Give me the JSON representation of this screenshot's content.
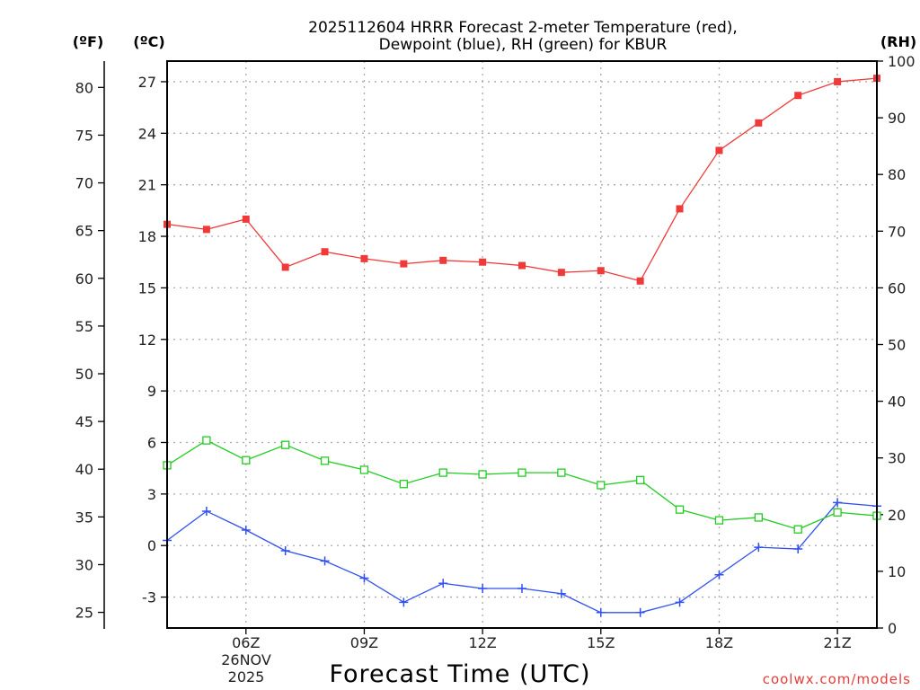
{
  "chart_data": {
    "type": "line",
    "title_lines": [
      "2025112604 HRRR Forecast 2-meter Temperature (red),",
      "Dewpoint (blue), RH (green) for KBUR"
    ],
    "xlabel": "Forecast Time (UTC)",
    "date_label": [
      "26NOV",
      "2025"
    ],
    "units": {
      "fahrenheit": "(ºF)",
      "celsius": "(ºC)",
      "rh": "(RH)"
    },
    "credit": "coolwx.com/models",
    "x_hours_utc": [
      4,
      5,
      6,
      7,
      8,
      9,
      10,
      11,
      12,
      13,
      14,
      15,
      16,
      17,
      18,
      19,
      20,
      21,
      22
    ],
    "x_ticks": [
      {
        "hour": 6,
        "label": "06Z"
      },
      {
        "hour": 9,
        "label": "09Z"
      },
      {
        "hour": 12,
        "label": "12Z"
      },
      {
        "hour": 15,
        "label": "15Z"
      },
      {
        "hour": 18,
        "label": "18Z"
      },
      {
        "hour": 21,
        "label": "21Z"
      }
    ],
    "xlim": [
      4,
      22
    ],
    "ylim_celsius": [
      -4.8,
      28.2
    ],
    "ylim_rh": [
      0,
      100
    ],
    "celsius_ticks": [
      "-3",
      "0",
      "3",
      "6",
      "9",
      "12",
      "15",
      "18",
      "21",
      "24",
      "27"
    ],
    "fahrenheit_ticks": [
      "25",
      "30",
      "35",
      "40",
      "45",
      "50",
      "55",
      "60",
      "65",
      "70",
      "75",
      "80"
    ],
    "rh_ticks": [
      "0",
      "10",
      "20",
      "30",
      "40",
      "50",
      "60",
      "70",
      "80",
      "90",
      "100"
    ],
    "grid": true,
    "series": [
      {
        "name": "Temperature",
        "axis": "celsius",
        "color": "#f03a3a",
        "marker": "filled-square",
        "values": [
          18.7,
          18.4,
          19.0,
          16.2,
          17.1,
          16.7,
          16.4,
          16.6,
          16.5,
          16.3,
          15.9,
          16.0,
          15.4,
          19.6,
          23.0,
          24.6,
          26.2,
          27.0,
          27.2
        ]
      },
      {
        "name": "Dewpoint",
        "axis": "celsius",
        "color": "#3050f0",
        "marker": "plus",
        "values": [
          0.3,
          2.0,
          0.9,
          -0.3,
          -0.9,
          -1.9,
          -3.3,
          -2.2,
          -2.5,
          -2.5,
          -2.8,
          -3.9,
          -3.9,
          -3.3,
          -1.7,
          -0.1,
          -0.2,
          2.5,
          2.3
        ]
      },
      {
        "name": "RH",
        "axis": "rh",
        "color": "#22cc22",
        "marker": "open-square",
        "values": [
          28.7,
          33.1,
          29.6,
          32.3,
          29.5,
          27.9,
          25.4,
          27.4,
          27.1,
          27.4,
          27.4,
          25.2,
          26.1,
          20.9,
          19.0,
          19.5,
          17.4,
          20.4,
          19.8
        ]
      }
    ]
  }
}
